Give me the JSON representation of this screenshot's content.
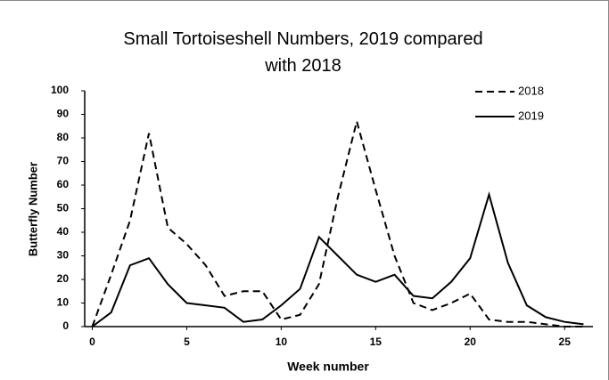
{
  "chart_data": {
    "type": "line",
    "title": "Small Tortoiseshell Numbers, 2019 compared with 2018",
    "x_label": "Week number",
    "y_label": "Butterfly Number",
    "x": [
      0,
      1,
      2,
      3,
      4,
      5,
      6,
      7,
      8,
      9,
      10,
      11,
      12,
      13,
      14,
      15,
      16,
      17,
      18,
      19,
      20,
      21,
      22,
      23,
      24,
      25,
      26
    ],
    "series": [
      {
        "name": "2018",
        "color": "#000000",
        "dash": "dashed",
        "values": [
          0,
          22,
          45,
          82,
          42,
          35,
          26,
          13,
          15,
          15,
          3,
          5,
          18,
          55,
          87,
          58,
          30,
          10,
          7,
          10,
          14,
          3,
          2,
          2,
          1,
          0,
          0
        ]
      },
      {
        "name": "2019",
        "color": "#000000",
        "dash": "solid",
        "values": [
          0,
          6,
          26,
          29,
          18,
          10,
          9,
          8,
          2,
          3,
          9,
          16,
          38,
          30,
          22,
          19,
          22,
          13,
          12,
          19,
          29,
          56,
          27,
          9,
          4,
          2,
          1
        ]
      }
    ],
    "xlim": [
      -0.4,
      26.5
    ],
    "xticks": [
      0,
      5,
      10,
      15,
      20,
      25
    ],
    "ylim": [
      0,
      100
    ],
    "yticks": [
      0,
      10,
      20,
      30,
      40,
      50,
      60,
      70,
      80,
      90,
      100
    ],
    "grid": false,
    "legend": "top-right"
  }
}
